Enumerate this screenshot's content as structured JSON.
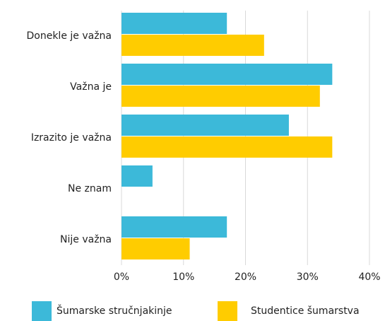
{
  "chart_data": {
    "type": "hbar",
    "categories": [
      "Donekle je važna",
      "Važna je",
      "Izrazito je važna",
      "Ne znam",
      "Nije važna"
    ],
    "series": [
      {
        "name": "Šumarske stručnjakinje",
        "color": "#3cb9d9",
        "values": [
          17,
          34,
          27,
          5,
          17
        ]
      },
      {
        "name": "Studentice  šumarstva",
        "color": "#ffcc00",
        "values": [
          23,
          32,
          34,
          0,
          11
        ]
      }
    ],
    "xlim": [
      0,
      40
    ],
    "xticks": [
      {
        "value": 0,
        "label": "0%"
      },
      {
        "value": 10,
        "label": "10%"
      },
      {
        "value": 20,
        "label": "20%"
      },
      {
        "value": 30,
        "label": "30%"
      },
      {
        "value": 40,
        "label": "40%"
      }
    ],
    "grid": true,
    "legend": "bottom"
  }
}
